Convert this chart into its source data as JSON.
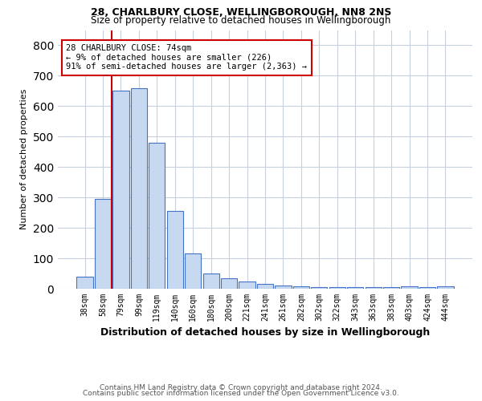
{
  "title1": "28, CHARLBURY CLOSE, WELLINGBOROUGH, NN8 2NS",
  "title2": "Size of property relative to detached houses in Wellingborough",
  "xlabel": "Distribution of detached houses by size in Wellingborough",
  "ylabel": "Number of detached properties",
  "footer1": "Contains HM Land Registry data © Crown copyright and database right 2024.",
  "footer2": "Contains public sector information licensed under the Open Government Licence v3.0.",
  "categories": [
    "38sqm",
    "58sqm",
    "79sqm",
    "99sqm",
    "119sqm",
    "140sqm",
    "160sqm",
    "180sqm",
    "200sqm",
    "221sqm",
    "241sqm",
    "261sqm",
    "282sqm",
    "302sqm",
    "322sqm",
    "343sqm",
    "363sqm",
    "383sqm",
    "403sqm",
    "424sqm",
    "444sqm"
  ],
  "values": [
    40,
    295,
    650,
    660,
    480,
    255,
    115,
    50,
    35,
    25,
    15,
    10,
    8,
    5,
    5,
    5,
    5,
    5,
    7,
    5,
    8
  ],
  "bar_color": "#c6d9f0",
  "bar_edge_color": "#4472c4",
  "red_line_x": 1.5,
  "red_line_color": "#cc0000",
  "annotation_text": "28 CHARLBURY CLOSE: 74sqm\n← 9% of detached houses are smaller (226)\n91% of semi-detached houses are larger (2,363) →",
  "annotation_box_color": "#ffffff",
  "annotation_box_edge_color": "#cc0000",
  "ylim": [
    0,
    850
  ],
  "yticks": [
    0,
    100,
    200,
    300,
    400,
    500,
    600,
    700,
    800
  ],
  "background_color": "#ffffff",
  "grid_color": "#c8d0e0"
}
